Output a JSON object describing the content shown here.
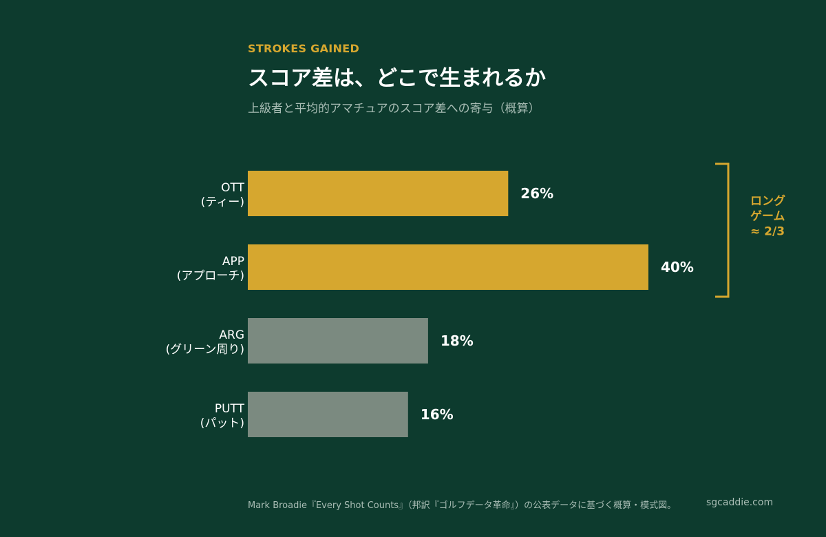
{
  "header": {
    "eyebrow": "STROKES GAINED",
    "title": "スコア差は、どこで生まれるか",
    "subtitle": "上級者と平均的アマチュアのスコア差への寄与（概算）"
  },
  "colors": {
    "background": "#0d3b2e",
    "highlight": "#d6a72f",
    "muted": "#7b8a80",
    "text": "#ffffff",
    "subtext": "#a9bdb5"
  },
  "chart_data": {
    "type": "bar",
    "orientation": "horizontal",
    "categories": [
      "OTT",
      "APP",
      "ARG",
      "PUTT"
    ],
    "category_sublabels": [
      "(ティー)",
      "(アプローチ)",
      "(グリーン周り)",
      "(パット)"
    ],
    "values": [
      26,
      40,
      18,
      16
    ],
    "value_labels": [
      "26%",
      "40%",
      "18%",
      "16%"
    ],
    "highlighted": [
      true,
      true,
      false,
      false
    ],
    "unit": "%",
    "xlim": [
      0,
      40
    ],
    "title": "スコア差は、どこで生まれるか",
    "subtitle": "上級者と平均的アマチュアのスコア差への寄与（概算）",
    "grid": false,
    "annotation": {
      "lines": [
        "ロング",
        "ゲーム",
        "≈ 2/3"
      ],
      "spans_categories": [
        "OTT",
        "APP"
      ]
    }
  },
  "footer": {
    "source": "Mark Broadie『Every Shot Counts』（邦訳『ゴルフデータ革命』）の公表データに基づく概算・模式図。",
    "site": "sgcaddie.com"
  }
}
